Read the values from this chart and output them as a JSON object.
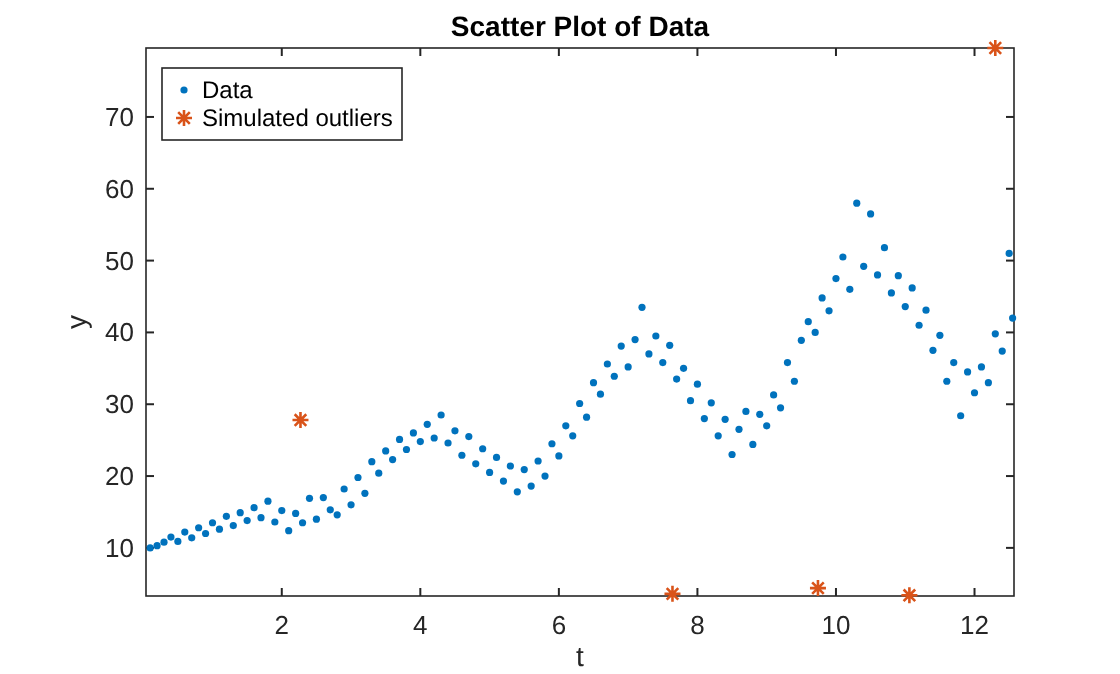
{
  "chart_data": {
    "type": "scatter",
    "title": "Scatter Plot of Data",
    "xlabel": "t",
    "ylabel": "y",
    "xlim": [
      0.04,
      12.57
    ],
    "ylim": [
      3.3,
      79.6
    ],
    "xticks": [
      2,
      4,
      6,
      8,
      10,
      12
    ],
    "yticks": [
      10,
      20,
      30,
      40,
      50,
      60,
      70
    ],
    "grid": false,
    "legend": "top left",
    "series": [
      {
        "name": "Data",
        "color": "#0072bd",
        "marker": "circle",
        "x": [
          0.1,
          0.2,
          0.3,
          0.4,
          0.5,
          0.6,
          0.7,
          0.8,
          0.9,
          1.0,
          1.1,
          1.2,
          1.3,
          1.4,
          1.5,
          1.6,
          1.7,
          1.8,
          1.9,
          2.0,
          2.1,
          2.2,
          2.3,
          2.4,
          2.5,
          2.6,
          2.7,
          2.8,
          2.9,
          3.0,
          3.1,
          3.2,
          3.3,
          3.4,
          3.5,
          3.6,
          3.7,
          3.8,
          3.9,
          4.0,
          4.1,
          4.2,
          4.3,
          4.4,
          4.5,
          4.6,
          4.7,
          4.8,
          4.9,
          5.0,
          5.1,
          5.2,
          5.3,
          5.4,
          5.5,
          5.6,
          5.7,
          5.8,
          5.9,
          6.0,
          6.1,
          6.2,
          6.3,
          6.4,
          6.5,
          6.6,
          6.7,
          6.8,
          6.9,
          7.0,
          7.1,
          7.2,
          7.3,
          7.4,
          7.5,
          7.6,
          7.7,
          7.8,
          7.9,
          8.0,
          8.1,
          8.2,
          8.3,
          8.4,
          8.5,
          8.6,
          8.7,
          8.8,
          8.9,
          9.0,
          9.1,
          9.2,
          9.3,
          9.4,
          9.5,
          9.6,
          9.7,
          9.8,
          9.9,
          10.0,
          10.1,
          10.2,
          10.3,
          10.4,
          10.5,
          10.6,
          10.7,
          10.8,
          10.9,
          11.0,
          11.1,
          11.2,
          11.3,
          11.4,
          11.5,
          11.6,
          11.7,
          11.8,
          11.9,
          12.0,
          12.1,
          12.2,
          12.3,
          12.4,
          12.5,
          12.55
        ],
        "values": [
          10.0,
          10.3,
          10.8,
          11.5,
          10.9,
          12.2,
          11.4,
          12.8,
          12.0,
          13.5,
          12.6,
          14.4,
          13.1,
          14.9,
          13.8,
          15.6,
          14.2,
          16.5,
          13.6,
          15.2,
          12.4,
          14.8,
          13.5,
          16.9,
          14.0,
          17.0,
          15.3,
          14.6,
          18.2,
          16.0,
          19.8,
          17.6,
          22.0,
          20.4,
          23.5,
          22.3,
          25.1,
          23.7,
          26.0,
          24.8,
          27.2,
          25.3,
          28.5,
          24.6,
          26.3,
          22.9,
          25.5,
          21.7,
          23.8,
          20.5,
          22.6,
          19.3,
          21.4,
          17.8,
          20.9,
          18.6,
          22.1,
          20.0,
          24.5,
          22.8,
          27.0,
          25.6,
          30.1,
          28.2,
          33.0,
          31.4,
          35.6,
          33.9,
          38.1,
          35.2,
          39.0,
          43.5,
          37.0,
          39.5,
          35.8,
          38.2,
          33.5,
          35.0,
          30.5,
          32.8,
          28.0,
          30.2,
          25.6,
          27.9,
          23.0,
          26.5,
          29.0,
          24.4,
          28.6,
          27.0,
          31.3,
          29.5,
          35.8,
          33.2,
          38.9,
          41.5,
          40.0,
          44.8,
          43.0,
          47.5,
          50.5,
          46.0,
          58.0,
          49.2,
          56.5,
          48.0,
          51.8,
          45.5,
          47.9,
          43.6,
          46.2,
          41.0,
          43.1,
          37.5,
          39.6,
          33.2,
          35.8,
          28.4,
          34.5,
          31.6,
          35.2,
          33.0,
          39.8,
          37.4,
          51.0,
          42.0
        ]
      },
      {
        "name": "Simulated outliers",
        "color": "#d95319",
        "marker": "cross",
        "x": [
          2.27,
          7.64,
          9.74,
          11.06,
          12.3
        ],
        "values": [
          27.8,
          3.6,
          4.4,
          3.4,
          79.6
        ]
      }
    ]
  }
}
